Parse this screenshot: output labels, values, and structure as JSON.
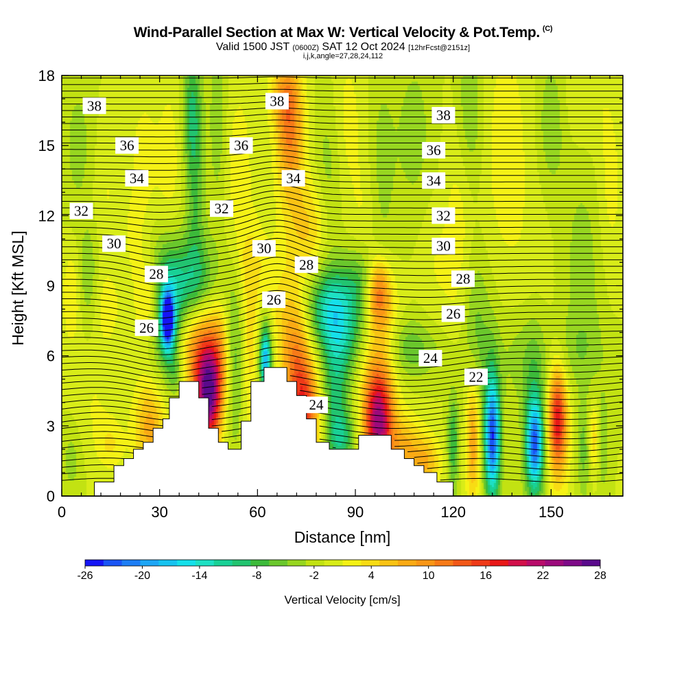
{
  "header": {
    "title": "Wind-Parallel Section at Max W: Vertical Velocity & Pot.Temp.",
    "copyright": "(C)",
    "valid_a": "Valid 1500 JST",
    "valid_z": "(0600Z)",
    "valid_b": "SAT 12 Oct 2024",
    "fcst": "[12hrFcst@2151z]",
    "params": "i,j,k,angle=27,28,24,112"
  },
  "chart_data": {
    "type": "heatmap",
    "xlabel": "Distance [nm]",
    "ylabel": "Height [Kft MSL]",
    "xlim": [
      0,
      172
    ],
    "ylim": [
      0,
      18
    ],
    "xticks": [
      0,
      30,
      60,
      90,
      120,
      150
    ],
    "yticks": [
      0,
      3,
      6,
      9,
      12,
      15,
      18
    ],
    "colorbar": {
      "label": "Vertical Velocity [cm/s]",
      "tick_labels": [
        -26,
        -20,
        -14,
        -8,
        -2,
        4,
        10,
        16,
        22,
        28
      ],
      "levels": [
        -26,
        -24,
        -22,
        -20,
        -18,
        -16,
        -14,
        -12,
        -10,
        -8,
        -6,
        -4,
        -2,
        0,
        2,
        4,
        6,
        8,
        10,
        12,
        14,
        16,
        18,
        20,
        22,
        24,
        26,
        28
      ],
      "colors": [
        "#1515f5",
        "#1a55f5",
        "#1d7ef5",
        "#1ea6f5",
        "#17c3f0",
        "#15e0ea",
        "#1ee0c3",
        "#19d196",
        "#22c470",
        "#3cba3a",
        "#6ac72c",
        "#97d620",
        "#c2e212",
        "#d8ec18",
        "#f5f215",
        "#f8dc14",
        "#fac314",
        "#fbaa14",
        "#fa9616",
        "#f77a18",
        "#f25818",
        "#ef3a18",
        "#e81818",
        "#d2104a",
        "#b80c6a",
        "#9c0a7c",
        "#7e0a88",
        "#5a0a8c"
      ]
    },
    "pot_temp_contours": [
      {
        "label": "38",
        "x": 10,
        "y": 16.7
      },
      {
        "label": "36",
        "x": 20,
        "y": 15.0
      },
      {
        "label": "34",
        "x": 23,
        "y": 13.6
      },
      {
        "label": "32",
        "x": 6,
        "y": 12.2
      },
      {
        "label": "30",
        "x": 16,
        "y": 10.8
      },
      {
        "label": "28",
        "x": 29,
        "y": 9.5
      },
      {
        "label": "26",
        "x": 26,
        "y": 7.2
      },
      {
        "label": "38",
        "x": 66,
        "y": 16.9
      },
      {
        "label": "36",
        "x": 55,
        "y": 15.0
      },
      {
        "label": "34",
        "x": 71,
        "y": 13.6
      },
      {
        "label": "32",
        "x": 49,
        "y": 12.3
      },
      {
        "label": "30",
        "x": 62,
        "y": 10.6
      },
      {
        "label": "28",
        "x": 75,
        "y": 9.9
      },
      {
        "label": "26",
        "x": 65,
        "y": 8.4
      },
      {
        "label": "24",
        "x": 78,
        "y": 3.9
      },
      {
        "label": "38",
        "x": 117,
        "y": 16.3
      },
      {
        "label": "36",
        "x": 114,
        "y": 14.8
      },
      {
        "label": "34",
        "x": 114,
        "y": 13.5
      },
      {
        "label": "32",
        "x": 117,
        "y": 12.0
      },
      {
        "label": "30",
        "x": 117,
        "y": 10.7
      },
      {
        "label": "28",
        "x": 123,
        "y": 9.3
      },
      {
        "label": "26",
        "x": 120,
        "y": 7.8
      },
      {
        "label": "24",
        "x": 113,
        "y": 5.9
      },
      {
        "label": "22",
        "x": 127,
        "y": 5.1
      }
    ],
    "terrain_profile_kft": [
      [
        0,
        0
      ],
      [
        10,
        0
      ],
      [
        10,
        0.6
      ],
      [
        16,
        0.6
      ],
      [
        16,
        1.3
      ],
      [
        19,
        1.3
      ],
      [
        19,
        1.6
      ],
      [
        22,
        1.6
      ],
      [
        22,
        2.0
      ],
      [
        25,
        2.0
      ],
      [
        25,
        2.3
      ],
      [
        28,
        2.3
      ],
      [
        28,
        2.9
      ],
      [
        31,
        2.9
      ],
      [
        31,
        3.3
      ],
      [
        33,
        3.3
      ],
      [
        33,
        4.2
      ],
      [
        36,
        4.2
      ],
      [
        36,
        4.9
      ],
      [
        42,
        4.9
      ],
      [
        42,
        4.2
      ],
      [
        45,
        4.2
      ],
      [
        45,
        2.9
      ],
      [
        48,
        2.9
      ],
      [
        48,
        2.3
      ],
      [
        51,
        2.3
      ],
      [
        51,
        2.0
      ],
      [
        55,
        2.0
      ],
      [
        55,
        3.2
      ],
      [
        58,
        3.2
      ],
      [
        58,
        4.9
      ],
      [
        62,
        4.9
      ],
      [
        62,
        5.5
      ],
      [
        69,
        5.5
      ],
      [
        69,
        4.9
      ],
      [
        72,
        4.9
      ],
      [
        72,
        4.3
      ],
      [
        75,
        4.3
      ],
      [
        75,
        3.3
      ],
      [
        78,
        3.3
      ],
      [
        78,
        2.3
      ],
      [
        82,
        2.3
      ],
      [
        82,
        2.0
      ],
      [
        91,
        2.0
      ],
      [
        91,
        2.6
      ],
      [
        101,
        2.6
      ],
      [
        101,
        2.0
      ],
      [
        105,
        2.0
      ],
      [
        105,
        1.6
      ],
      [
        108,
        1.6
      ],
      [
        108,
        1.3
      ],
      [
        111,
        1.3
      ],
      [
        111,
        1.0
      ],
      [
        115,
        1.0
      ],
      [
        115,
        0.6
      ],
      [
        120,
        0.6
      ],
      [
        120,
        0
      ],
      [
        172,
        0
      ]
    ],
    "vertical_velocity_features": [
      {
        "x": 32.5,
        "y": 7.5,
        "sx": 1.3,
        "sy": 0.8,
        "w": -26
      },
      {
        "x": 32,
        "y": 8.0,
        "sx": 4,
        "sy": 2.0,
        "w": -12
      },
      {
        "x": 40,
        "y": 9.2,
        "sx": 6,
        "sy": 1.3,
        "w": -8
      },
      {
        "x": 45,
        "y": 4.2,
        "sx": 2.6,
        "sy": 1.5,
        "w": 24
      },
      {
        "x": 42,
        "y": 6.0,
        "sx": 5,
        "sy": 1.6,
        "w": 12
      },
      {
        "x": 27,
        "y": 8.3,
        "sx": 3,
        "sy": 1.3,
        "w": 8
      },
      {
        "x": 27,
        "y": 3.0,
        "sx": 3.5,
        "sy": 1.5,
        "w": 9
      },
      {
        "x": 35,
        "y": 5.3,
        "sx": 2,
        "sy": 0.8,
        "w": -6
      },
      {
        "x": 53,
        "y": 6.0,
        "sx": 2.5,
        "sy": 2.5,
        "w": -8
      },
      {
        "x": 49,
        "y": 6.0,
        "sx": 2.5,
        "sy": 2.0,
        "w": 6
      },
      {
        "x": 58,
        "y": 6.0,
        "sx": 2.5,
        "sy": 2.5,
        "w": 7
      },
      {
        "x": 62.5,
        "y": 5.8,
        "sx": 1.2,
        "sy": 1.0,
        "w": -16
      },
      {
        "x": 61.5,
        "y": 6.3,
        "sx": 2.8,
        "sy": 2.0,
        "w": -7
      },
      {
        "x": 72,
        "y": 5.5,
        "sx": 3,
        "sy": 2.0,
        "w": 10
      },
      {
        "x": 75,
        "y": 3.5,
        "sx": 3,
        "sy": 1.5,
        "w": 14
      },
      {
        "x": 66,
        "y": 7.5,
        "sx": 6,
        "sy": 2.0,
        "w": 5
      },
      {
        "x": 70,
        "y": 15.5,
        "sx": 3,
        "sy": 2.0,
        "w": 12
      },
      {
        "x": 68,
        "y": 17.2,
        "sx": 3,
        "sy": 1.0,
        "w": 6
      },
      {
        "x": 76,
        "y": 11.5,
        "sx": 5,
        "sy": 1.5,
        "w": 6
      },
      {
        "x": 81,
        "y": 8.0,
        "sx": 5,
        "sy": 1.2,
        "w": -9
      },
      {
        "x": 88,
        "y": 7.3,
        "sx": 5,
        "sy": 1.5,
        "w": -7
      },
      {
        "x": 84,
        "y": 4.5,
        "sx": 3,
        "sy": 2.5,
        "w": -8
      },
      {
        "x": 86,
        "y": 2.5,
        "sx": 3,
        "sy": 0.8,
        "w": -6
      },
      {
        "x": 97,
        "y": 3.0,
        "sx": 3,
        "sy": 1.5,
        "w": 20
      },
      {
        "x": 97,
        "y": 5.0,
        "sx": 4,
        "sy": 2.0,
        "w": 8
      },
      {
        "x": 97,
        "y": 8.8,
        "sx": 2.5,
        "sy": 1.0,
        "w": 12
      },
      {
        "x": 99,
        "y": 7.6,
        "sx": 4,
        "sy": 1.2,
        "w": 4
      },
      {
        "x": 92,
        "y": 9.3,
        "sx": 4,
        "sy": 1.0,
        "w": -5
      },
      {
        "x": 104,
        "y": 6.5,
        "sx": 5,
        "sy": 1.0,
        "w": -4
      },
      {
        "x": 110,
        "y": 6.2,
        "sx": 6,
        "sy": 0.8,
        "w": -3
      },
      {
        "x": 105,
        "y": 2.0,
        "sx": 4,
        "sy": 1.0,
        "w": 8
      },
      {
        "x": 112,
        "y": 1.4,
        "sx": 3,
        "sy": 0.8,
        "w": 7
      },
      {
        "x": 120,
        "y": 2.3,
        "sx": 1.2,
        "sy": 1.5,
        "w": -8
      },
      {
        "x": 126,
        "y": 2.5,
        "sx": 1.5,
        "sy": 2.0,
        "w": 10
      },
      {
        "x": 132,
        "y": 2.5,
        "sx": 1.6,
        "sy": 1.6,
        "w": -16
      },
      {
        "x": 132,
        "y": 2.8,
        "sx": 1.8,
        "sy": 2.6,
        "w": -8
      },
      {
        "x": 127,
        "y": 7.0,
        "sx": 3,
        "sy": 2.5,
        "w": -5
      },
      {
        "x": 122,
        "y": 12.0,
        "sx": 3,
        "sy": 4.0,
        "w": 3
      },
      {
        "x": 145,
        "y": 2.2,
        "sx": 1.7,
        "sy": 1.2,
        "w": -16
      },
      {
        "x": 145,
        "y": 2.8,
        "sx": 2.5,
        "sy": 2.8,
        "w": -8
      },
      {
        "x": 152,
        "y": 3.3,
        "sx": 1.8,
        "sy": 1.4,
        "w": 14
      },
      {
        "x": 152,
        "y": 2.8,
        "sx": 2.8,
        "sy": 2.2,
        "w": 6
      },
      {
        "x": 160,
        "y": 2.0,
        "sx": 1.5,
        "sy": 1.5,
        "w": -5
      },
      {
        "x": 163,
        "y": 2.5,
        "sx": 1.2,
        "sy": 1.0,
        "w": 6
      },
      {
        "x": 166,
        "y": 2.3,
        "sx": 1.2,
        "sy": 1.5,
        "w": -4
      },
      {
        "x": 136,
        "y": 15.0,
        "sx": 6,
        "sy": 4.0,
        "w": 3
      },
      {
        "x": 125,
        "y": 16.5,
        "sx": 3,
        "sy": 2.5,
        "w": -5
      },
      {
        "x": 150,
        "y": 16.0,
        "sx": 3,
        "sy": 2.0,
        "w": -4
      },
      {
        "x": 160,
        "y": 17.0,
        "sx": 5,
        "sy": 1.5,
        "w": 2
      },
      {
        "x": 40,
        "y": 16.5,
        "sx": 2,
        "sy": 2.0,
        "w": -8
      },
      {
        "x": 41,
        "y": 12.5,
        "sx": 2,
        "sy": 2.5,
        "w": -5
      },
      {
        "x": 33,
        "y": 14.0,
        "sx": 3,
        "sy": 3.0,
        "w": 3
      },
      {
        "x": 25,
        "y": 14.5,
        "sx": 3,
        "sy": 2.0,
        "w": 3
      },
      {
        "x": 54,
        "y": 14.0,
        "sx": 4,
        "sy": 3.0,
        "w": 3
      },
      {
        "x": 48,
        "y": 16.0,
        "sx": 2,
        "sy": 3.0,
        "w": -4
      },
      {
        "x": 3,
        "y": 8.5,
        "sx": 2,
        "sy": 1.5,
        "w": 4
      },
      {
        "x": 8,
        "y": 9.5,
        "sx": 2,
        "sy": 1.5,
        "w": -4
      },
      {
        "x": 14,
        "y": 8.0,
        "sx": 3,
        "sy": 1.2,
        "w": 3
      },
      {
        "x": 5,
        "y": 15.0,
        "sx": 3,
        "sy": 2.0,
        "w": -3
      },
      {
        "x": 14,
        "y": 13.0,
        "sx": 3,
        "sy": 2.0,
        "w": 2
      },
      {
        "x": 22,
        "y": 11.0,
        "sx": 3,
        "sy": 1.5,
        "w": 2
      },
      {
        "x": 10,
        "y": 4.0,
        "sx": 4,
        "sy": 1.5,
        "w": 2
      },
      {
        "x": 3,
        "y": 1.5,
        "sx": 2,
        "sy": 1.0,
        "w": -3
      },
      {
        "x": 15,
        "y": 2.2,
        "sx": 3,
        "sy": 0.8,
        "w": 4
      },
      {
        "x": 82,
        "y": 13.5,
        "sx": 3,
        "sy": 3.0,
        "w": -4
      },
      {
        "x": 87,
        "y": 16.0,
        "sx": 4,
        "sy": 2.5,
        "w": 3
      },
      {
        "x": 98,
        "y": 14.0,
        "sx": 3,
        "sy": 3.0,
        "w": -3
      },
      {
        "x": 93,
        "y": 12.0,
        "sx": 3,
        "sy": 2.0,
        "w": 2
      },
      {
        "x": 58,
        "y": 10.0,
        "sx": 4,
        "sy": 1.2,
        "w": 3
      },
      {
        "x": 108,
        "y": 15.5,
        "sx": 4,
        "sy": 2.5,
        "w": -3
      },
      {
        "x": 115,
        "y": 10.0,
        "sx": 4,
        "sy": 2.0,
        "w": 2
      },
      {
        "x": 145,
        "y": 9.0,
        "sx": 6,
        "sy": 3.0,
        "w": 1
      },
      {
        "x": 160,
        "y": 10.0,
        "sx": 5,
        "sy": 3.0,
        "w": -3
      },
      {
        "x": 140,
        "y": 6.0,
        "sx": 5,
        "sy": 1.5,
        "w": -3
      },
      {
        "x": 158,
        "y": 6.2,
        "sx": 6,
        "sy": 1.2,
        "w": -3
      },
      {
        "x": 168,
        "y": 13.0,
        "sx": 3,
        "sy": 3.0,
        "w": 3
      }
    ]
  }
}
